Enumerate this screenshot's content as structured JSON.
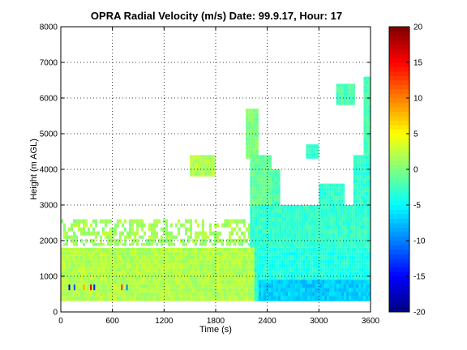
{
  "chart_data": {
    "type": "heatmap",
    "title": "OPRA Radial Velocity (m/s)  Date: 99.9.17, Hour: 17",
    "xlabel": "Time (s)",
    "ylabel": "Height (m AGL)",
    "xlim": [
      0,
      3600
    ],
    "ylim": [
      0,
      8000
    ],
    "x_ticks": [
      0,
      600,
      1200,
      1800,
      2400,
      3000,
      3600
    ],
    "y_ticks": [
      0,
      1000,
      2000,
      3000,
      4000,
      5000,
      6000,
      7000,
      8000
    ],
    "grid": "dotted",
    "colorbar": {
      "range": [
        -20,
        20
      ],
      "ticks": [
        -20,
        -15,
        -10,
        -5,
        0,
        5,
        10,
        15,
        20
      ],
      "colormap": "jet"
    },
    "regions": [
      {
        "t": [
          0,
          2300
        ],
        "h": [
          300,
          1800
        ],
        "v": 2
      },
      {
        "t": [
          0,
          2200
        ],
        "h": [
          2050,
          2600
        ],
        "v": 1.5,
        "sparse": true
      },
      {
        "t": [
          0,
          2600
        ],
        "h": [
          1850,
          2050
        ],
        "v": 1,
        "sparse": true
      },
      {
        "t": [
          2250,
          3600
        ],
        "h": [
          300,
          1800
        ],
        "v": -4
      },
      {
        "t": [
          2300,
          3600
        ],
        "h": [
          300,
          900
        ],
        "v": -7
      },
      {
        "t": [
          2200,
          3600
        ],
        "h": [
          1800,
          3000
        ],
        "v": -3
      },
      {
        "t": [
          2200,
          2450
        ],
        "h": [
          3000,
          4400
        ],
        "v": -1
      },
      {
        "t": [
          2450,
          2550
        ],
        "h": [
          3000,
          4000
        ],
        "v": -2
      },
      {
        "t": [
          3000,
          3300
        ],
        "h": [
          3000,
          3600
        ],
        "v": -3
      },
      {
        "t": [
          3400,
          3600
        ],
        "h": [
          3000,
          4400
        ],
        "v": -3
      },
      {
        "t": [
          3520,
          3600
        ],
        "h": [
          4400,
          6600
        ],
        "v": -2
      },
      {
        "t": [
          3200,
          3420
        ],
        "h": [
          5800,
          6400
        ],
        "v": -2
      },
      {
        "t": [
          2150,
          2300
        ],
        "h": [
          4300,
          5700
        ],
        "v": 0
      },
      {
        "t": [
          1500,
          1800
        ],
        "h": [
          3800,
          4400
        ],
        "v": 2
      },
      {
        "t": [
          2850,
          3000
        ],
        "h": [
          4300,
          4700
        ],
        "v": -3
      }
    ],
    "speckles": [
      {
        "t": 90,
        "h": 700,
        "v": -15
      },
      {
        "t": 150,
        "h": 700,
        "v": -12
      },
      {
        "t": 260,
        "h": 700,
        "v": 8
      },
      {
        "t": 340,
        "h": 700,
        "v": 16
      },
      {
        "t": 380,
        "h": 700,
        "v": -14
      },
      {
        "t": 700,
        "h": 700,
        "v": 13
      },
      {
        "t": 760,
        "h": 700,
        "v": -10
      }
    ]
  }
}
